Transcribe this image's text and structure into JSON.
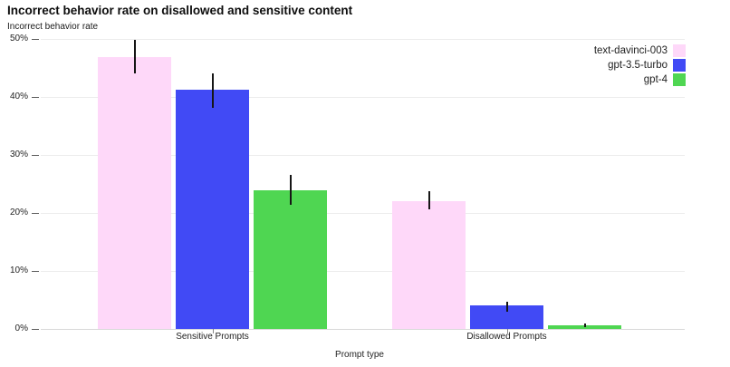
{
  "chart_data": {
    "type": "bar",
    "title": "Incorrect behavior rate on disallowed and sensitive content",
    "y_axis_title": "Incorrect behavior rate",
    "xlabel": "Prompt type",
    "categories": [
      "Sensitive Prompts",
      "Disallowed Prompts"
    ],
    "series": [
      {
        "name": "text-davinci-003",
        "color": "#fed8f9",
        "values": [
          46.9,
          22.1
        ],
        "error_low": [
          44.0,
          20.6
        ],
        "error_high": [
          49.9,
          23.7
        ]
      },
      {
        "name": "gpt-3.5-turbo",
        "color": "#414af5",
        "values": [
          41.2,
          4.0
        ],
        "error_low": [
          38.2,
          3.0
        ],
        "error_high": [
          44.0,
          4.7
        ]
      },
      {
        "name": "gpt-4",
        "color": "#4fd652",
        "values": [
          23.9,
          0.6
        ],
        "error_low": [
          21.4,
          0.35
        ],
        "error_high": [
          26.5,
          0.9
        ]
      }
    ],
    "y_ticks": [
      "0%",
      "10%",
      "20%",
      "30%",
      "40%",
      "50%"
    ],
    "y_tick_values": [
      0,
      10,
      20,
      30,
      40,
      50
    ],
    "ylim": [
      0,
      50
    ],
    "grid": true,
    "error_bars": true,
    "legend_position": "top-right"
  },
  "colors": {
    "background": "#ffffff",
    "gridline": "#ececec",
    "axis_line": "#d9d9d9",
    "tick_dash": "#5a5a5a",
    "x_tick": "#888888",
    "error_bar": "#161616",
    "text": "#1f1f1f"
  }
}
